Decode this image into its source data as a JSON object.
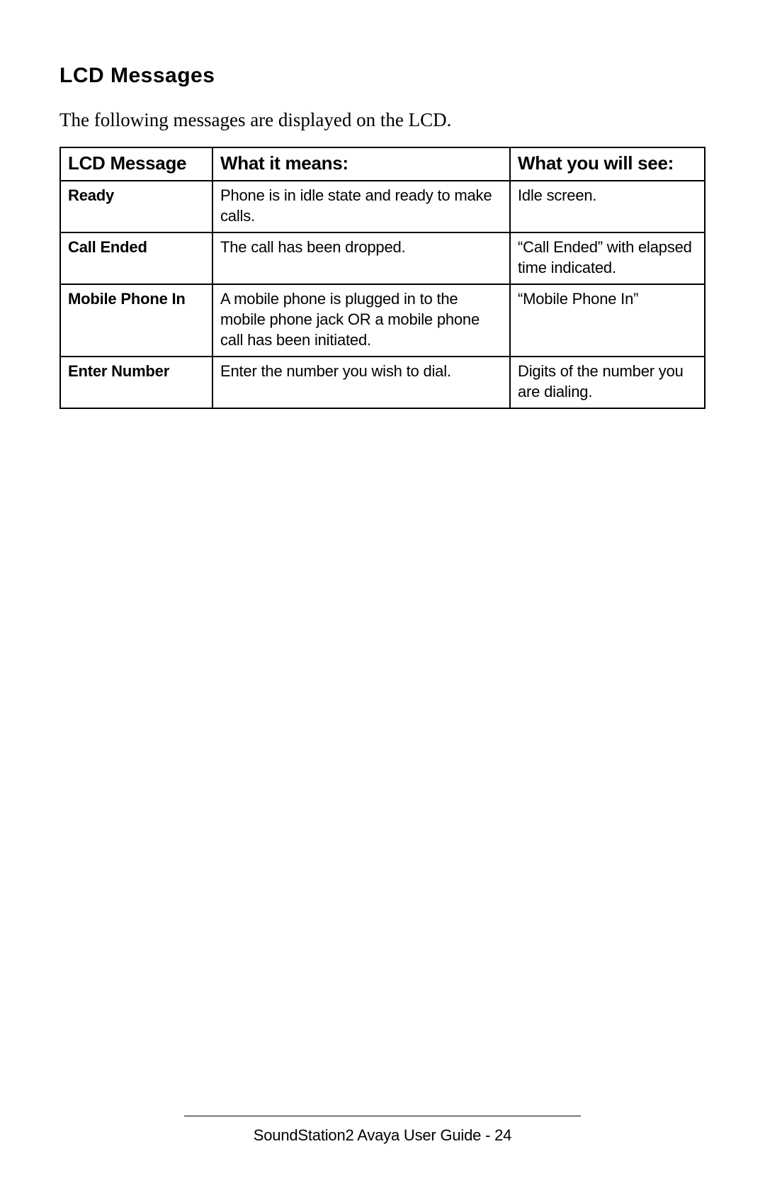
{
  "heading": "LCD Messages",
  "intro": "The following messages are displayed on the LCD.",
  "table": {
    "columns": [
      "LCD Message",
      "What it means:",
      "What you will see:"
    ],
    "rows": [
      {
        "msg": "Ready",
        "means": "Phone is in idle state and ready to make calls.",
        "see": "Idle screen."
      },
      {
        "msg": "Call Ended",
        "means": "The call has been dropped.",
        "see": "“Call Ended” with elapsed time indicated."
      },
      {
        "msg": "Mobile Phone In",
        "means": "A mobile phone is plugged in to the mobile phone jack OR a mobile phone call has been initiated.",
        "see": "“Mobile Phone In”"
      },
      {
        "msg": "Enter Number",
        "means": "Enter the number you wish to dial.",
        "see": "Digits of the number you are dialing."
      }
    ]
  },
  "footer": "SoundStation2 Avaya User Guide - 24"
}
